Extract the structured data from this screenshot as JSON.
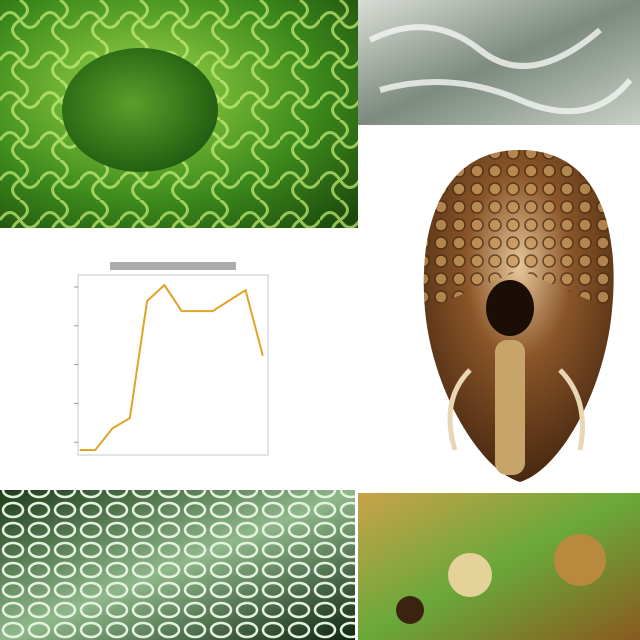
{
  "chart_data": {
    "type": "line",
    "x": [
      0.1,
      1,
      2,
      3,
      4,
      5,
      6,
      7.8,
      9.7,
      10.7
    ],
    "series": [
      {
        "color": "#e0a428",
        "values": [
          0.8,
          0.8,
          1.36,
          1.62,
          4.64,
          5.05,
          4.38,
          4.38,
          4.92,
          3.23
        ]
      }
    ],
    "xlim": [
      0,
      11
    ],
    "ylim": [
      0.67,
      5.31
    ],
    "yticks": [
      1,
      2,
      3,
      4,
      5
    ]
  }
}
